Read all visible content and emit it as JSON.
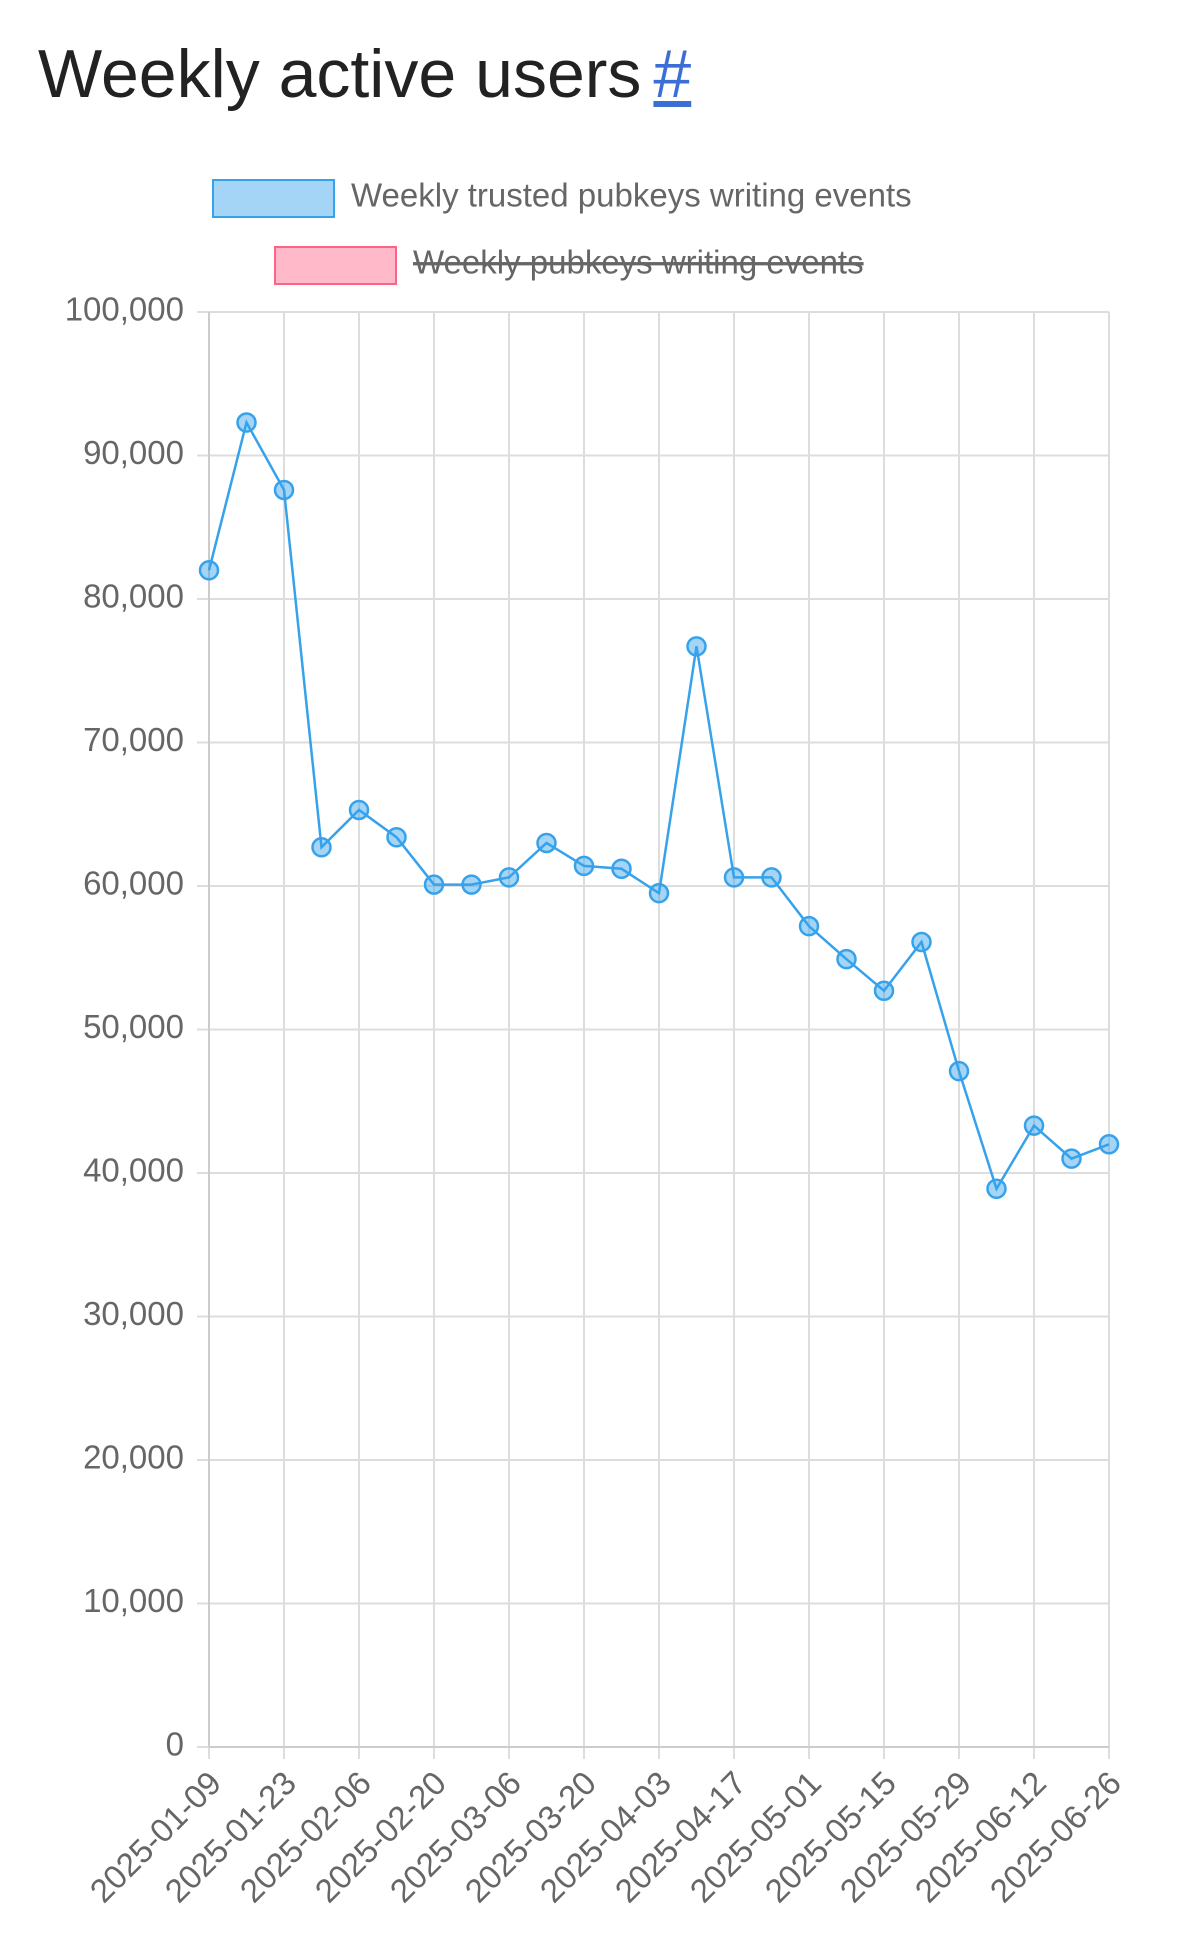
{
  "chart_data": {
    "type": "line",
    "title": "Weekly active users",
    "title_link": "#",
    "categories": [
      "2025-01-09",
      null,
      "2025-01-23",
      null,
      "2025-02-06",
      null,
      "2025-02-20",
      null,
      "2025-03-06",
      null,
      "2025-03-20",
      null,
      "2025-04-03",
      null,
      "2025-04-17",
      null,
      "2025-05-01",
      null,
      "2025-05-15",
      null,
      "2025-05-29",
      null,
      "2025-06-12",
      null,
      "2025-06-26"
    ],
    "series": [
      {
        "name": "Weekly trusted pubkeys writing events",
        "color": "#36a2eb",
        "hidden": false,
        "values": [
          82000,
          92300,
          87600,
          62700,
          65300,
          63400,
          60100,
          60100,
          60600,
          63000,
          61400,
          61200,
          59500,
          76700,
          60600,
          60600,
          57200,
          54900,
          52700,
          56100,
          47100,
          38900,
          43300,
          41000,
          42000
        ]
      },
      {
        "name": "Weekly pubkeys writing events",
        "color": "#ff6384",
        "hidden": true,
        "values": [
          null,
          null,
          null,
          null,
          null,
          null,
          null,
          null,
          null,
          null,
          null,
          null,
          null,
          null,
          null,
          null,
          null,
          null,
          null,
          null,
          null,
          null,
          null,
          null,
          null
        ]
      }
    ],
    "ylim": [
      0,
      100000
    ],
    "yticks": [
      0,
      {
        "value": 10000,
        "label": "10,000"
      },
      {
        "value": 20000,
        "label": "20,000"
      },
      {
        "value": 30000,
        "label": "30,000"
      },
      {
        "value": 40000,
        "label": "40,000"
      },
      {
        "value": 50000,
        "label": "50,000"
      },
      {
        "value": 60000,
        "label": "60,000"
      },
      {
        "value": 70000,
        "label": "70,000"
      },
      {
        "value": 80000,
        "label": "80,000"
      },
      {
        "value": 90000,
        "label": "90,000"
      },
      {
        "value": 100000,
        "label": "100,000"
      }
    ],
    "grid": true
  }
}
